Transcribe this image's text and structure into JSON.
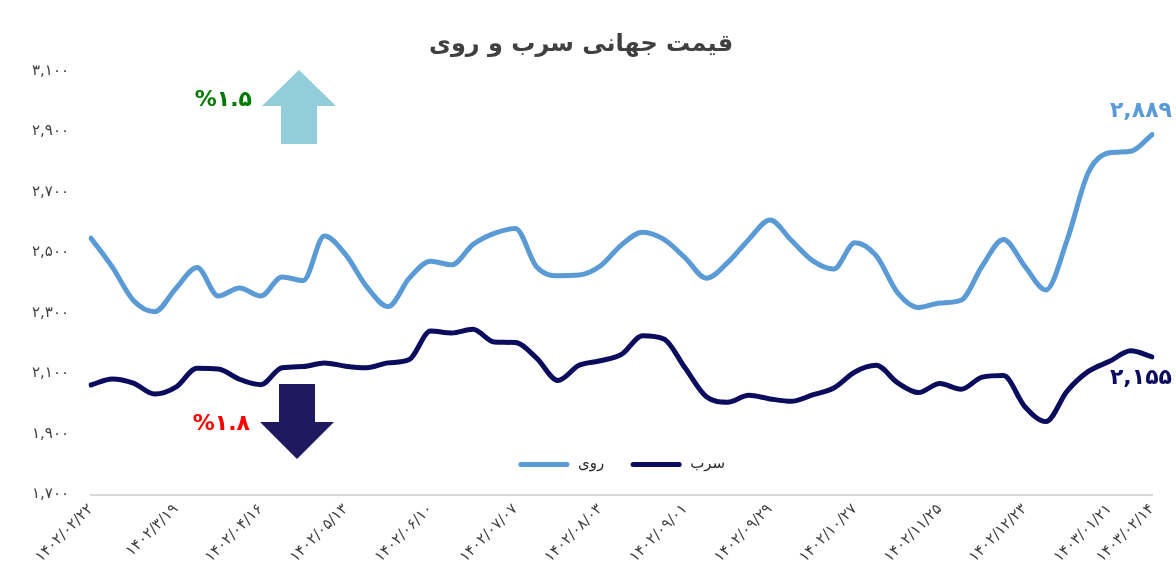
{
  "chart_data": {
    "type": "line",
    "title": "قیمت جهانی سرب و روی",
    "categories": [
      "۱۴۰۲/۰۲/۲۲",
      null,
      null,
      null,
      "۱۴۰۲/۳/۱۹",
      null,
      null,
      null,
      "۱۴۰۲/۰۴/۱۶",
      null,
      null,
      null,
      "۱۴۰۲/۰۵/۱۳",
      null,
      null,
      null,
      "۱۴۰۲/۰۶/۱۰",
      null,
      null,
      null,
      "۱۴۰۲/۰۷/۰۷",
      null,
      null,
      null,
      "۱۴۰۲/۰۸/۰۳",
      null,
      null,
      null,
      "۱۴۰۲/۰۹/۰۱",
      null,
      null,
      null,
      "۱۴۰۲/۰۹/۲۹",
      null,
      null,
      null,
      "۱۴۰۲/۱۰/۲۷",
      null,
      null,
      null,
      "۱۴۰۲/۱۱/۲۵",
      null,
      null,
      null,
      "۱۴۰۲/۱۲/۲۳",
      null,
      null,
      null,
      "۱۴۰۳/۰۱/۲۱",
      null,
      "۱۴۰۳/۰۲/۱۴"
    ],
    "series": [
      {
        "name": "روی",
        "color": "#5b9bd5",
        "values": [
          2547,
          2452,
          2341,
          2304,
          2381,
          2450,
          2356,
          2382,
          2356,
          2419,
          2407,
          2554,
          2493,
          2386,
          2321,
          2415,
          2471,
          2459,
          2526,
          2563,
          2579,
          2452,
          2423,
          2425,
          2455,
          2525,
          2567,
          2543,
          2482,
          2415,
          2466,
          2543,
          2607,
          2540,
          2473,
          2445,
          2532,
          2489,
          2368,
          2318,
          2333,
          2342,
          2455,
          2543,
          2455,
          2376,
          2541,
          2764,
          2829,
          2834,
          2889
        ],
        "value_labels": [
          null,
          null,
          null,
          null,
          null,
          null,
          null,
          null,
          null,
          null,
          null,
          null,
          null,
          null,
          null,
          null,
          null,
          null,
          null,
          null,
          null,
          null,
          null,
          null,
          null,
          null,
          null,
          null,
          null,
          null,
          null,
          null,
          null,
          null,
          null,
          null,
          null,
          null,
          null,
          null,
          null,
          null,
          null,
          null,
          null,
          null,
          null,
          null,
          null,
          null,
          "۲,۸۸۹"
        ]
      },
      {
        "name": "سرب",
        "color": "#0c0c5e",
        "values": [
          2062,
          2082,
          2068,
          2032,
          2055,
          2117,
          2115,
          2081,
          2063,
          2119,
          2123,
          2135,
          2124,
          2119,
          2135,
          2146,
          2240,
          2234,
          2246,
          2204,
          2202,
          2151,
          2077,
          2127,
          2142,
          2163,
          2225,
          2214,
          2118,
          2023,
          2005,
          2028,
          2016,
          2008,
          2029,
          2052,
          2105,
          2127,
          2070,
          2037,
          2067,
          2048,
          2088,
          2093,
          1991,
          1941,
          2042,
          2107,
          2140,
          2175,
          2155
        ],
        "value_labels": [
          null,
          null,
          null,
          null,
          null,
          null,
          null,
          null,
          null,
          null,
          null,
          null,
          null,
          null,
          null,
          null,
          null,
          null,
          null,
          null,
          null,
          null,
          null,
          null,
          null,
          null,
          null,
          null,
          null,
          null,
          null,
          null,
          null,
          null,
          null,
          null,
          null,
          null,
          null,
          null,
          null,
          null,
          null,
          null,
          null,
          null,
          null,
          null,
          null,
          null,
          "۲,۱۵۵"
        ]
      }
    ],
    "ylim": [
      1700,
      3100
    ],
    "yticks": [
      {
        "value": 1700,
        "label": "۱,۷۰۰"
      },
      {
        "value": 1900,
        "label": "۱,۹۰۰"
      },
      {
        "value": 2100,
        "label": "۲,۱۰۰"
      },
      {
        "value": 2300,
        "label": "۲,۳۰۰"
      },
      {
        "value": 2500,
        "label": "۲,۵۰۰"
      },
      {
        "value": 2700,
        "label": "۲,۷۰۰"
      },
      {
        "value": 2900,
        "label": "۲,۹۰۰"
      },
      {
        "value": 3100,
        "label": "۳,۱۰۰"
      }
    ],
    "annotations": [
      "%۱.۵",
      "%۱.۸"
    ],
    "grid": false,
    "legend": "bottom",
    "marker": "none",
    "line_style": "solid"
  }
}
